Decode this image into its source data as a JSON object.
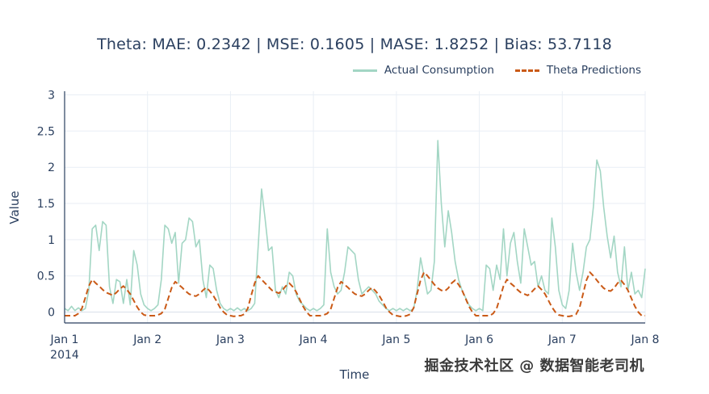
{
  "figure": {
    "background": "#ffffff",
    "text_color": "#2a3f5f",
    "grid_color": "#e9eef5",
    "zero_line_color": "#d9e0ea",
    "axis_line_color": "#2a3f5f"
  },
  "watermark": {
    "text": "掘金技术社区 @ 数据智能老司机",
    "color": "#3b3b3b"
  },
  "chart_data": {
    "type": "line",
    "title": "Theta: MAE: 0.2342 | MSE: 0.1605 | MASE: 1.8252 | Bias: 53.7118",
    "xlabel": "Time",
    "ylabel": "Value",
    "x_unit": "hours since 2014-01-01 00:00",
    "ylim": [
      -0.15,
      3.05
    ],
    "yticks": [
      0,
      0.5,
      1,
      1.5,
      2,
      2.5,
      3
    ],
    "ytick_labels": [
      "0",
      "0.5",
      "1",
      "1.5",
      "2",
      "2.5",
      "3"
    ],
    "xticks": [
      0,
      24,
      48,
      72,
      96,
      120,
      144,
      168
    ],
    "xtick_labels": [
      "Jan 1",
      "Jan 2",
      "Jan 3",
      "Jan 4",
      "Jan 5",
      "Jan 6",
      "Jan 7",
      "Jan 8"
    ],
    "xtick_sublabels": [
      "2014",
      "",
      "",
      "",
      "",
      "",
      "",
      ""
    ],
    "grid": true,
    "legend_position": "top-right",
    "series": [
      {
        "name": "Actual Consumption",
        "color": "#a3d6c4",
        "dash": "solid",
        "width": 1.6,
        "values": [
          0.05,
          0.02,
          0.08,
          0.02,
          0.06,
          0.02,
          0.05,
          0.3,
          1.15,
          1.2,
          0.85,
          1.25,
          1.2,
          0.35,
          0.12,
          0.45,
          0.42,
          0.12,
          0.45,
          0.1,
          0.85,
          0.65,
          0.25,
          0.1,
          0.05,
          0.02,
          0.05,
          0.1,
          0.45,
          1.2,
          1.15,
          0.95,
          1.1,
          0.4,
          0.95,
          1.0,
          1.3,
          1.25,
          0.9,
          1.0,
          0.45,
          0.2,
          0.65,
          0.6,
          0.3,
          0.12,
          0.05,
          0.02,
          0.05,
          0.02,
          0.06,
          0.02,
          0.05,
          0.02,
          0.05,
          0.12,
          0.9,
          1.7,
          1.3,
          0.85,
          0.9,
          0.3,
          0.2,
          0.35,
          0.25,
          0.55,
          0.5,
          0.25,
          0.15,
          0.1,
          0.05,
          0.02,
          0.05,
          0.02,
          0.05,
          0.1,
          1.15,
          0.55,
          0.35,
          0.25,
          0.3,
          0.55,
          0.9,
          0.85,
          0.8,
          0.45,
          0.25,
          0.3,
          0.35,
          0.3,
          0.25,
          0.15,
          0.1,
          0.05,
          0.02,
          0.05,
          0.02,
          0.05,
          0.02,
          0.05,
          0.02,
          0.05,
          0.3,
          0.75,
          0.5,
          0.25,
          0.3,
          0.7,
          2.37,
          1.5,
          0.9,
          1.4,
          1.1,
          0.7,
          0.45,
          0.3,
          0.2,
          0.1,
          0.05,
          0.02,
          0.05,
          0.02,
          0.65,
          0.6,
          0.3,
          0.65,
          0.45,
          1.15,
          0.5,
          0.95,
          1.1,
          0.7,
          0.4,
          1.15,
          0.9,
          0.65,
          0.7,
          0.35,
          0.5,
          0.3,
          0.25,
          1.3,
          0.9,
          0.3,
          0.1,
          0.05,
          0.3,
          0.95,
          0.55,
          0.3,
          0.55,
          0.9,
          1.0,
          1.45,
          2.1,
          1.95,
          1.45,
          1.05,
          0.75,
          1.05,
          0.55,
          0.35,
          0.9,
          0.3,
          0.55,
          0.25,
          0.3,
          0.2,
          0.6
        ]
      },
      {
        "name": "Theta Predictions",
        "color": "#ca5a17",
        "dash": "dash",
        "width": 2,
        "values": [
          -0.05,
          -0.05,
          -0.05,
          -0.05,
          -0.02,
          0.05,
          0.2,
          0.36,
          0.45,
          0.4,
          0.36,
          0.31,
          0.27,
          0.25,
          0.23,
          0.27,
          0.32,
          0.36,
          0.31,
          0.25,
          0.16,
          0.07,
          0.0,
          -0.04,
          -0.05,
          -0.05,
          -0.05,
          -0.04,
          -0.02,
          0.04,
          0.19,
          0.34,
          0.42,
          0.38,
          0.34,
          0.29,
          0.25,
          0.23,
          0.22,
          0.25,
          0.3,
          0.34,
          0.29,
          0.23,
          0.15,
          0.06,
          0.0,
          -0.04,
          -0.05,
          -0.06,
          -0.05,
          -0.05,
          -0.03,
          0.05,
          0.23,
          0.4,
          0.5,
          0.45,
          0.4,
          0.35,
          0.3,
          0.28,
          0.26,
          0.3,
          0.36,
          0.4,
          0.35,
          0.28,
          0.18,
          0.08,
          0.0,
          -0.05,
          -0.05,
          -0.05,
          -0.05,
          -0.04,
          -0.02,
          0.04,
          0.19,
          0.34,
          0.42,
          0.38,
          0.34,
          0.29,
          0.25,
          0.23,
          0.22,
          0.25,
          0.3,
          0.34,
          0.29,
          0.23,
          0.15,
          0.06,
          0.0,
          -0.04,
          -0.05,
          -0.06,
          -0.06,
          -0.05,
          -0.03,
          0.06,
          0.25,
          0.44,
          0.55,
          0.5,
          0.44,
          0.38,
          0.33,
          0.3,
          0.29,
          0.33,
          0.4,
          0.44,
          0.38,
          0.3,
          0.19,
          0.08,
          0.0,
          -0.05,
          -0.05,
          -0.05,
          -0.05,
          -0.05,
          -0.02,
          0.05,
          0.2,
          0.36,
          0.45,
          0.4,
          0.36,
          0.31,
          0.27,
          0.25,
          0.23,
          0.27,
          0.32,
          0.36,
          0.31,
          0.25,
          0.16,
          0.07,
          0.0,
          -0.04,
          -0.05,
          -0.06,
          -0.06,
          -0.05,
          -0.03,
          0.06,
          0.25,
          0.44,
          0.55,
          0.5,
          0.44,
          0.38,
          0.33,
          0.3,
          0.29,
          0.33,
          0.4,
          0.44,
          0.38,
          0.3,
          0.19,
          0.08,
          0.0,
          -0.05,
          -0.05
        ]
      }
    ]
  }
}
